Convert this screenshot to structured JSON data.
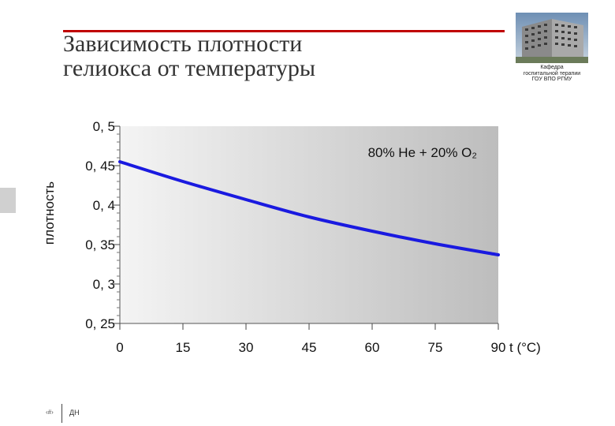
{
  "header": {
    "title_line1": "Зависимость плотности",
    "title_line2": "гелиокса от температуры",
    "dept_line1": "Кафедра",
    "dept_line2": "госпитальной терапии",
    "dept_line3": "ГОУ ВПО РГМУ"
  },
  "footer": {
    "page_number": "‹#›",
    "text": "ДН"
  },
  "colors": {
    "title_rule": "#c00000",
    "curve": "#1a1ae0",
    "plot_bg_light": "#f4f4f4",
    "plot_bg_dark": "#bdbdbd"
  },
  "chart_data": {
    "type": "line",
    "title": "",
    "xlabel": "t (°C)",
    "ylabel": "плотность",
    "xlim": [
      0,
      90
    ],
    "ylim": [
      0.25,
      0.5
    ],
    "x_ticks": [
      0,
      15,
      30,
      45,
      60,
      75,
      90
    ],
    "x_tick_labels": [
      "0",
      "15",
      "30",
      "45",
      "60",
      "75",
      "90"
    ],
    "y_ticks": [
      0.25,
      0.3,
      0.35,
      0.4,
      0.45,
      0.5
    ],
    "y_tick_labels": [
      "0, 25",
      "0, 3",
      "0, 35",
      "0, 4",
      "0, 45",
      "0, 5"
    ],
    "annotation": "80% He + 20% O₂",
    "grid": false,
    "series": [
      {
        "x": [
          0,
          15,
          30,
          45,
          60,
          75,
          90
        ],
        "y": [
          0.455,
          0.43,
          0.407,
          0.385,
          0.367,
          0.351,
          0.337
        ]
      }
    ]
  }
}
